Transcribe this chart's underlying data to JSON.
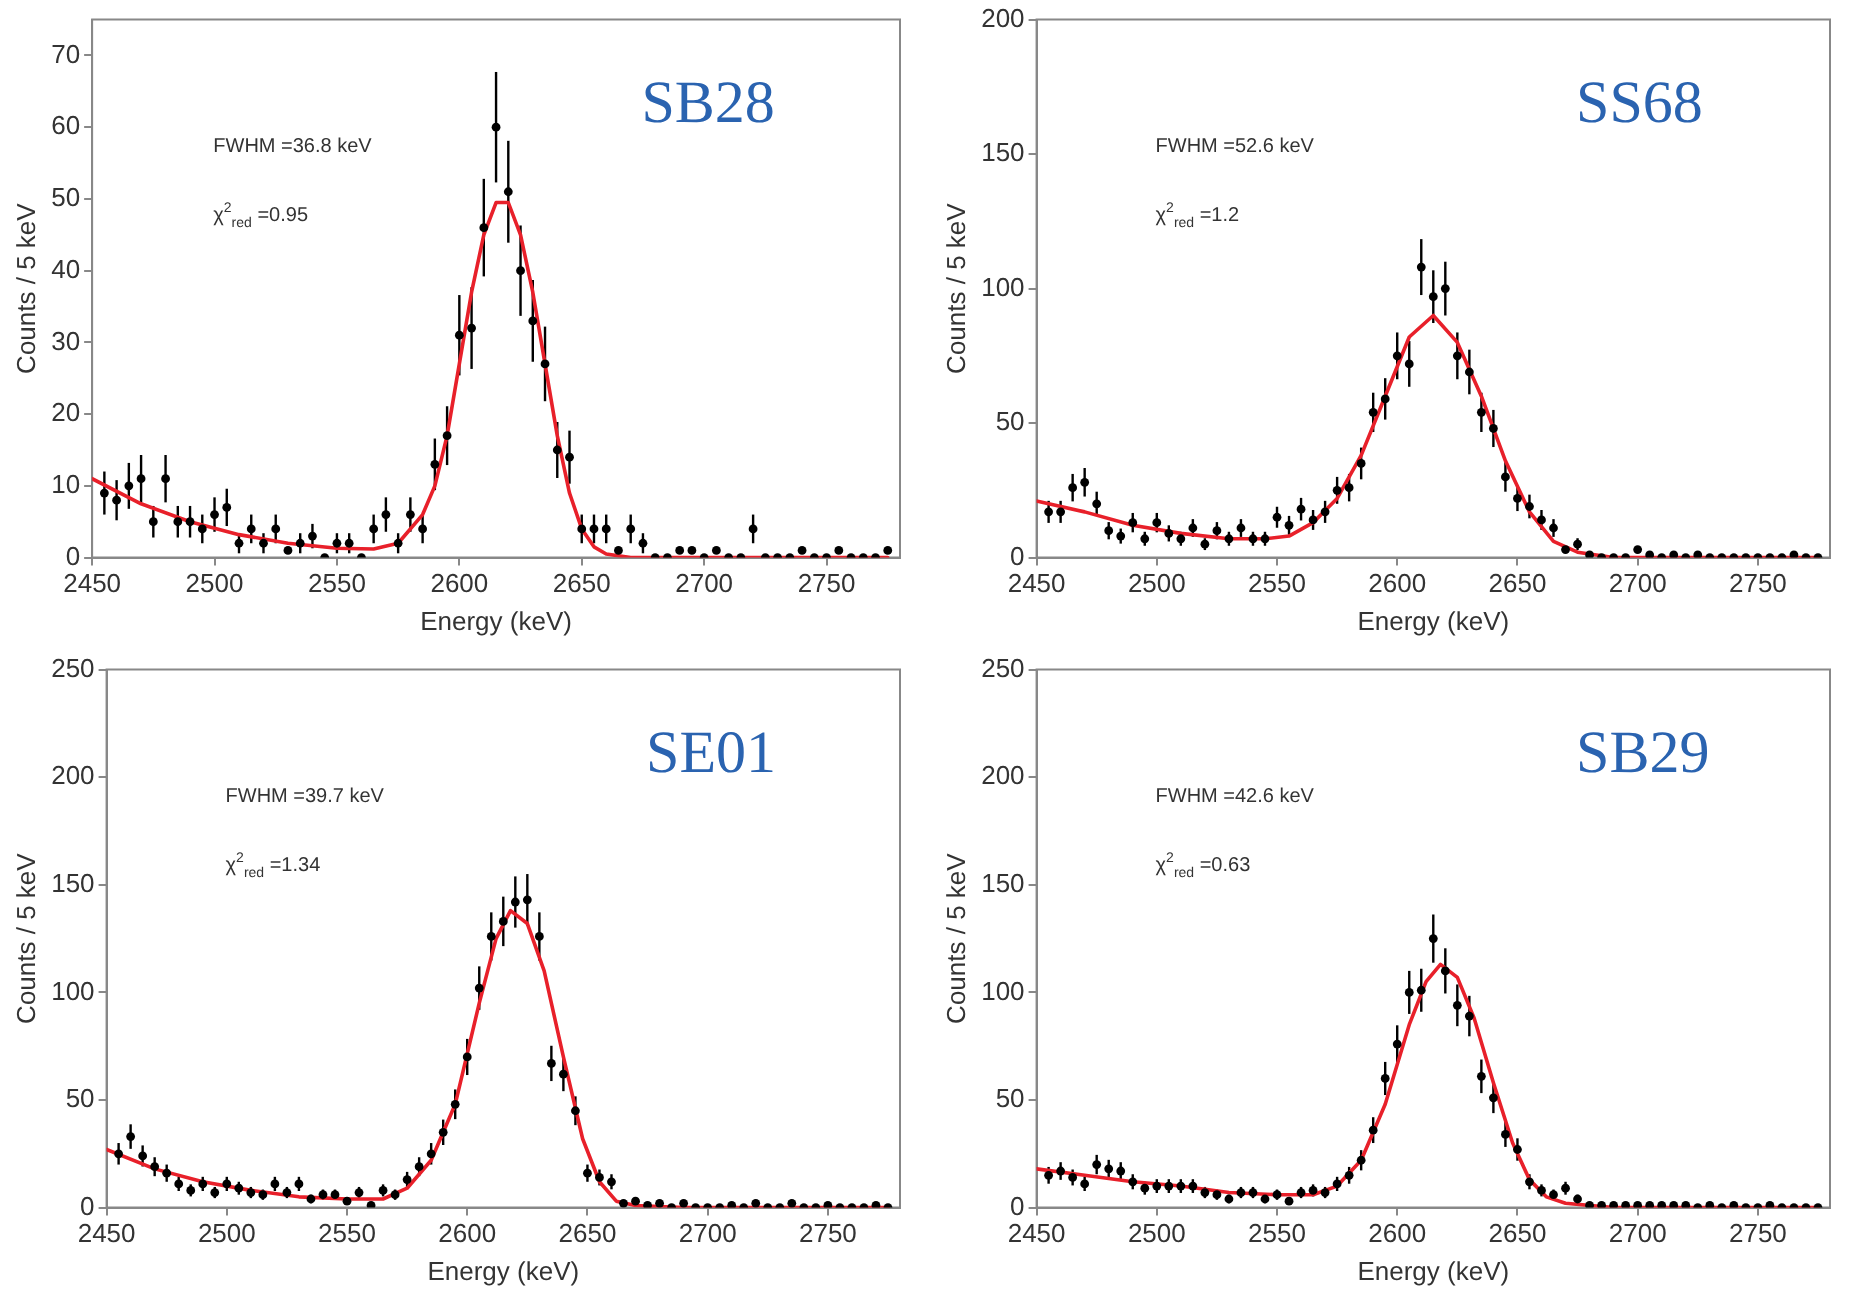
{
  "chart_data": [
    {
      "type": "scatter",
      "xlabel": "Energy (keV)",
      "ylabel": "Counts / 5 keV",
      "xlim": [
        2450,
        2780
      ],
      "xticks": [
        2450,
        2500,
        2550,
        2600,
        2650,
        2700,
        2750
      ],
      "ylim": [
        0,
        75
      ],
      "yticks": [
        0,
        10,
        20,
        30,
        40,
        50,
        60,
        70
      ],
      "annotations": [
        "SB28",
        "FWHM =36.8 keV",
        "χ$^{2}$$_{red}$ =0.95"
      ],
      "x": [
        2455,
        2460,
        2465,
        2470,
        2475,
        2480,
        2485,
        2490,
        2495,
        2500,
        2505,
        2510,
        2515,
        2520,
        2525,
        2530,
        2535,
        2540,
        2545,
        2550,
        2555,
        2560,
        2565,
        2570,
        2575,
        2580,
        2585,
        2590,
        2595,
        2600,
        2605,
        2610,
        2615,
        2620,
        2625,
        2630,
        2635,
        2640,
        2645,
        2650,
        2655,
        2660,
        2665,
        2670,
        2675,
        2680,
        2685,
        2690,
        2695,
        2700,
        2705,
        2710,
        2715,
        2720,
        2725,
        2730,
        2735,
        2740,
        2745,
        2750,
        2755,
        2760,
        2765,
        2770,
        2775
      ],
      "series": [
        {
          "type": "scatter",
          "color": "#000000",
          "marker": "circle",
          "values": [
            9,
            8,
            10,
            11,
            5,
            11,
            5,
            5,
            4,
            6,
            7,
            2,
            4,
            2,
            4,
            1,
            2,
            3,
            0,
            2,
            2,
            0,
            4,
            6,
            2,
            6,
            4,
            13,
            17,
            31,
            32,
            46,
            60,
            51,
            40,
            33,
            27,
            15,
            14,
            4,
            4,
            4,
            1,
            4,
            2,
            0,
            0,
            1,
            1,
            0,
            1,
            0,
            0,
            4,
            0,
            0,
            0,
            1,
            0,
            0,
            1,
            0,
            0,
            0,
            1
          ],
          "errors": [
            3,
            2.8,
            3.2,
            3.3,
            2.2,
            3.3,
            2.2,
            2.2,
            2,
            2.4,
            2.6,
            1.4,
            2,
            1.4,
            2,
            null,
            1.4,
            1.7,
            null,
            1.4,
            1.4,
            null,
            2,
            2.4,
            1.4,
            2.4,
            2,
            3.6,
            4.1,
            5.6,
            5.7,
            6.8,
            7.7,
            7.1,
            6.3,
            5.7,
            5.2,
            3.9,
            3.7,
            2,
            2,
            2,
            null,
            2,
            1.4,
            null,
            null,
            null,
            null,
            null,
            null,
            null,
            null,
            2,
            null,
            null,
            null,
            null,
            null,
            null,
            null,
            null,
            null,
            null,
            null
          ]
        },
        {
          "type": "line",
          "color": "#e8202a",
          "marker": "none",
          "x": [
            2450,
            2470,
            2490,
            2510,
            2530,
            2550,
            2565,
            2575,
            2585,
            2590,
            2595,
            2600,
            2605,
            2610,
            2615,
            2620,
            2625,
            2630,
            2635,
            2640,
            2645,
            2650,
            2655,
            2660,
            2670,
            2700,
            2775
          ],
          "values": [
            11,
            7.5,
            5,
            3.2,
            2,
            1.3,
            1.2,
            2,
            6,
            10,
            17,
            27,
            37,
            45,
            49.5,
            49.5,
            45,
            37,
            27,
            17,
            9,
            4,
            1.5,
            0.5,
            0,
            0,
            0
          ]
        }
      ]
    },
    {
      "type": "scatter",
      "xlabel": "Energy (keV)",
      "ylabel": "Counts / 5 keV",
      "xlim": [
        2450,
        2780
      ],
      "xticks": [
        2450,
        2500,
        2550,
        2600,
        2650,
        2700,
        2750
      ],
      "ylim": [
        0,
        200
      ],
      "yticks": [
        0,
        50,
        100,
        150,
        200
      ],
      "annotations": [
        "SS68",
        "FWHM =52.6 keV",
        "χ$^{2}$$_{red}$ =1.2"
      ],
      "x": [
        2455,
        2460,
        2465,
        2470,
        2475,
        2480,
        2485,
        2490,
        2495,
        2500,
        2505,
        2510,
        2515,
        2520,
        2525,
        2530,
        2535,
        2540,
        2545,
        2550,
        2555,
        2560,
        2565,
        2570,
        2575,
        2580,
        2585,
        2590,
        2595,
        2600,
        2605,
        2610,
        2615,
        2620,
        2625,
        2630,
        2635,
        2640,
        2645,
        2650,
        2655,
        2660,
        2665,
        2670,
        2675,
        2680,
        2685,
        2690,
        2695,
        2700,
        2705,
        2710,
        2715,
        2720,
        2725,
        2730,
        2735,
        2740,
        2745,
        2750,
        2755,
        2760,
        2765,
        2770,
        2775
      ],
      "series": [
        {
          "type": "scatter",
          "color": "#000000",
          "marker": "circle",
          "values": [
            17,
            17,
            26,
            28,
            20,
            10,
            8,
            13,
            7,
            13,
            9,
            7,
            11,
            5,
            10,
            7,
            11,
            7,
            7,
            15,
            12,
            18,
            14,
            17,
            25,
            26,
            35,
            54,
            59,
            75,
            72,
            108,
            97,
            100,
            75,
            69,
            54,
            48,
            30,
            22,
            19,
            14,
            11,
            3,
            5,
            1,
            0,
            0,
            0,
            3,
            1,
            0,
            1,
            0,
            1,
            0,
            0,
            0,
            0,
            0,
            0,
            0,
            1,
            0,
            0
          ],
          "errors": [
            4.1,
            4.1,
            5.1,
            5.3,
            4.5,
            3.2,
            2.8,
            3.6,
            2.6,
            3.6,
            3,
            2.6,
            3.3,
            2.2,
            3.2,
            2.6,
            3.3,
            2.6,
            2.6,
            3.9,
            3.5,
            4.2,
            3.7,
            4.1,
            5,
            5.1,
            5.9,
            7.3,
            7.7,
            8.7,
            8.5,
            10.4,
            9.8,
            10,
            8.7,
            8.3,
            7.3,
            6.9,
            5.5,
            4.7,
            4.4,
            3.7,
            3.3,
            null,
            2.2,
            null,
            null,
            null,
            null,
            null,
            null,
            null,
            null,
            null,
            null,
            null,
            null,
            null,
            null,
            null,
            null,
            null,
            null,
            null,
            null
          ]
        },
        {
          "type": "line",
          "color": "#e8202a",
          "marker": "none",
          "x": [
            2450,
            2470,
            2490,
            2510,
            2530,
            2545,
            2555,
            2565,
            2575,
            2585,
            2595,
            2605,
            2615,
            2625,
            2635,
            2645,
            2655,
            2665,
            2675,
            2690,
            2700,
            2775
          ],
          "values": [
            21,
            17,
            12,
            9,
            7,
            7,
            8,
            13,
            22,
            38,
            60,
            82,
            90,
            80,
            60,
            36,
            17,
            6,
            2,
            0,
            0,
            0
          ]
        }
      ]
    },
    {
      "type": "scatter",
      "xlabel": "Energy (keV)",
      "ylabel": "Counts / 5 keV",
      "xlim": [
        2450,
        2780
      ],
      "xticks": [
        2450,
        2500,
        2550,
        2600,
        2650,
        2700,
        2750
      ],
      "ylim": [
        0,
        250
      ],
      "yticks": [
        0,
        50,
        100,
        150,
        200,
        250
      ],
      "annotations": [
        "SE01",
        "FWHM =39.7 keV",
        "χ$^{2}$$_{red}$ =1.34"
      ],
      "x": [
        2455,
        2460,
        2465,
        2470,
        2475,
        2480,
        2485,
        2490,
        2495,
        2500,
        2505,
        2510,
        2515,
        2520,
        2525,
        2530,
        2535,
        2540,
        2545,
        2550,
        2555,
        2560,
        2565,
        2570,
        2575,
        2580,
        2585,
        2590,
        2595,
        2600,
        2605,
        2610,
        2615,
        2620,
        2625,
        2630,
        2635,
        2640,
        2645,
        2650,
        2655,
        2660,
        2665,
        2670,
        2675,
        2680,
        2685,
        2690,
        2695,
        2700,
        2705,
        2710,
        2715,
        2720,
        2725,
        2730,
        2735,
        2740,
        2745,
        2750,
        2755,
        2760,
        2765,
        2770,
        2775
      ],
      "series": [
        {
          "type": "scatter",
          "color": "#000000",
          "marker": "circle",
          "values": [
            25,
            33,
            24,
            19,
            16,
            11,
            8,
            11,
            7,
            11,
            9,
            7,
            6,
            11,
            7,
            11,
            4,
            6,
            6,
            3,
            7,
            1,
            8,
            6,
            13,
            19,
            25,
            35,
            48,
            70,
            102,
            126,
            133,
            142,
            143,
            126,
            67,
            62,
            45,
            16,
            14,
            12,
            2,
            3,
            1,
            2,
            0,
            2,
            0,
            0,
            0,
            1,
            0,
            2,
            0,
            0,
            2,
            0,
            0,
            1,
            0,
            0,
            0,
            1,
            0
          ],
          "errors": [
            5,
            5.7,
            4.9,
            4.4,
            4,
            3.3,
            2.8,
            3.3,
            2.6,
            3.3,
            3,
            2.6,
            2.4,
            3.3,
            2.6,
            3.3,
            2,
            2.4,
            2.4,
            1.7,
            2.6,
            null,
            2.8,
            2.4,
            3.6,
            4.4,
            5,
            5.9,
            6.9,
            8.4,
            10.1,
            11.2,
            11.5,
            11.9,
            12,
            11.2,
            8.2,
            7.9,
            6.7,
            4,
            3.7,
            3.5,
            1.4,
            1.7,
            null,
            1.4,
            null,
            1.4,
            null,
            null,
            null,
            null,
            null,
            1.4,
            null,
            null,
            1.4,
            null,
            null,
            null,
            null,
            null,
            null,
            null,
            null
          ]
        },
        {
          "type": "line",
          "color": "#e8202a",
          "marker": "none",
          "x": [
            2450,
            2470,
            2490,
            2510,
            2530,
            2550,
            2565,
            2575,
            2585,
            2595,
            2605,
            2612,
            2618,
            2625,
            2632,
            2640,
            2648,
            2655,
            2662,
            2670,
            2690,
            2775
          ],
          "values": [
            27,
            18,
            12,
            8,
            5,
            4,
            4,
            9,
            22,
            48,
            95,
            125,
            138,
            132,
            110,
            70,
            32,
            12,
            3,
            1,
            0,
            0
          ]
        }
      ]
    },
    {
      "type": "scatter",
      "xlabel": "Energy (keV)",
      "ylabel": "Counts / 5 keV",
      "xlim": [
        2450,
        2780
      ],
      "xticks": [
        2450,
        2500,
        2550,
        2600,
        2650,
        2700,
        2750
      ],
      "ylim": [
        0,
        250
      ],
      "yticks": [
        0,
        50,
        100,
        150,
        200,
        250
      ],
      "annotations": [
        "SB29",
        "FWHM =42.6 keV",
        "χ$^{2}$$_{red}$ =0.63"
      ],
      "x": [
        2455,
        2460,
        2465,
        2470,
        2475,
        2480,
        2485,
        2490,
        2495,
        2500,
        2505,
        2510,
        2515,
        2520,
        2525,
        2530,
        2535,
        2540,
        2545,
        2550,
        2555,
        2560,
        2565,
        2570,
        2575,
        2580,
        2585,
        2590,
        2595,
        2600,
        2605,
        2610,
        2615,
        2620,
        2625,
        2630,
        2635,
        2640,
        2645,
        2650,
        2655,
        2660,
        2665,
        2670,
        2675,
        2680,
        2685,
        2690,
        2695,
        2700,
        2705,
        2710,
        2715,
        2720,
        2725,
        2730,
        2735,
        2740,
        2745,
        2750,
        2755,
        2760,
        2765,
        2770,
        2775
      ],
      "series": [
        {
          "type": "scatter",
          "color": "#000000",
          "marker": "circle",
          "values": [
            15,
            17,
            14,
            11,
            20,
            18,
            17,
            12,
            9,
            10,
            10,
            10,
            10,
            7,
            6,
            4,
            7,
            7,
            4,
            6,
            3,
            7,
            8,
            7,
            11,
            15,
            22,
            36,
            60,
            76,
            100,
            101,
            125,
            110,
            94,
            89,
            61,
            51,
            34,
            27,
            12,
            8,
            6,
            9,
            4,
            1,
            1,
            1,
            1,
            1,
            1,
            1,
            1,
            1,
            0,
            1,
            0,
            1,
            0,
            0,
            1,
            0,
            0,
            0,
            0
          ],
          "errors": [
            3.9,
            4.1,
            3.7,
            3.3,
            4.5,
            4.2,
            4.1,
            3.5,
            3,
            3.2,
            3.2,
            3.2,
            3.2,
            2.6,
            2.4,
            2,
            2.6,
            2.6,
            2,
            2.4,
            1.7,
            2.6,
            2.8,
            2.6,
            3.3,
            3.9,
            4.7,
            6,
            7.7,
            8.7,
            10,
            10,
            11.2,
            10.5,
            9.7,
            9.4,
            7.8,
            7.1,
            5.8,
            5.2,
            3.5,
            2.8,
            2.4,
            3,
            2,
            null,
            null,
            null,
            null,
            null,
            null,
            null,
            null,
            null,
            null,
            null,
            null,
            null,
            null,
            null,
            null,
            null,
            null,
            null,
            null
          ]
        },
        {
          "type": "line",
          "color": "#e8202a",
          "marker": "none",
          "x": [
            2450,
            2470,
            2490,
            2510,
            2530,
            2550,
            2565,
            2575,
            2585,
            2595,
            2605,
            2612,
            2618,
            2625,
            2632,
            2640,
            2648,
            2655,
            2662,
            2670,
            2690,
            2775
          ],
          "values": [
            18,
            15,
            12,
            10,
            7,
            6,
            6,
            10,
            22,
            48,
            85,
            105,
            113,
            107,
            88,
            58,
            30,
            13,
            5,
            2,
            0,
            0
          ]
        }
      ]
    }
  ]
}
